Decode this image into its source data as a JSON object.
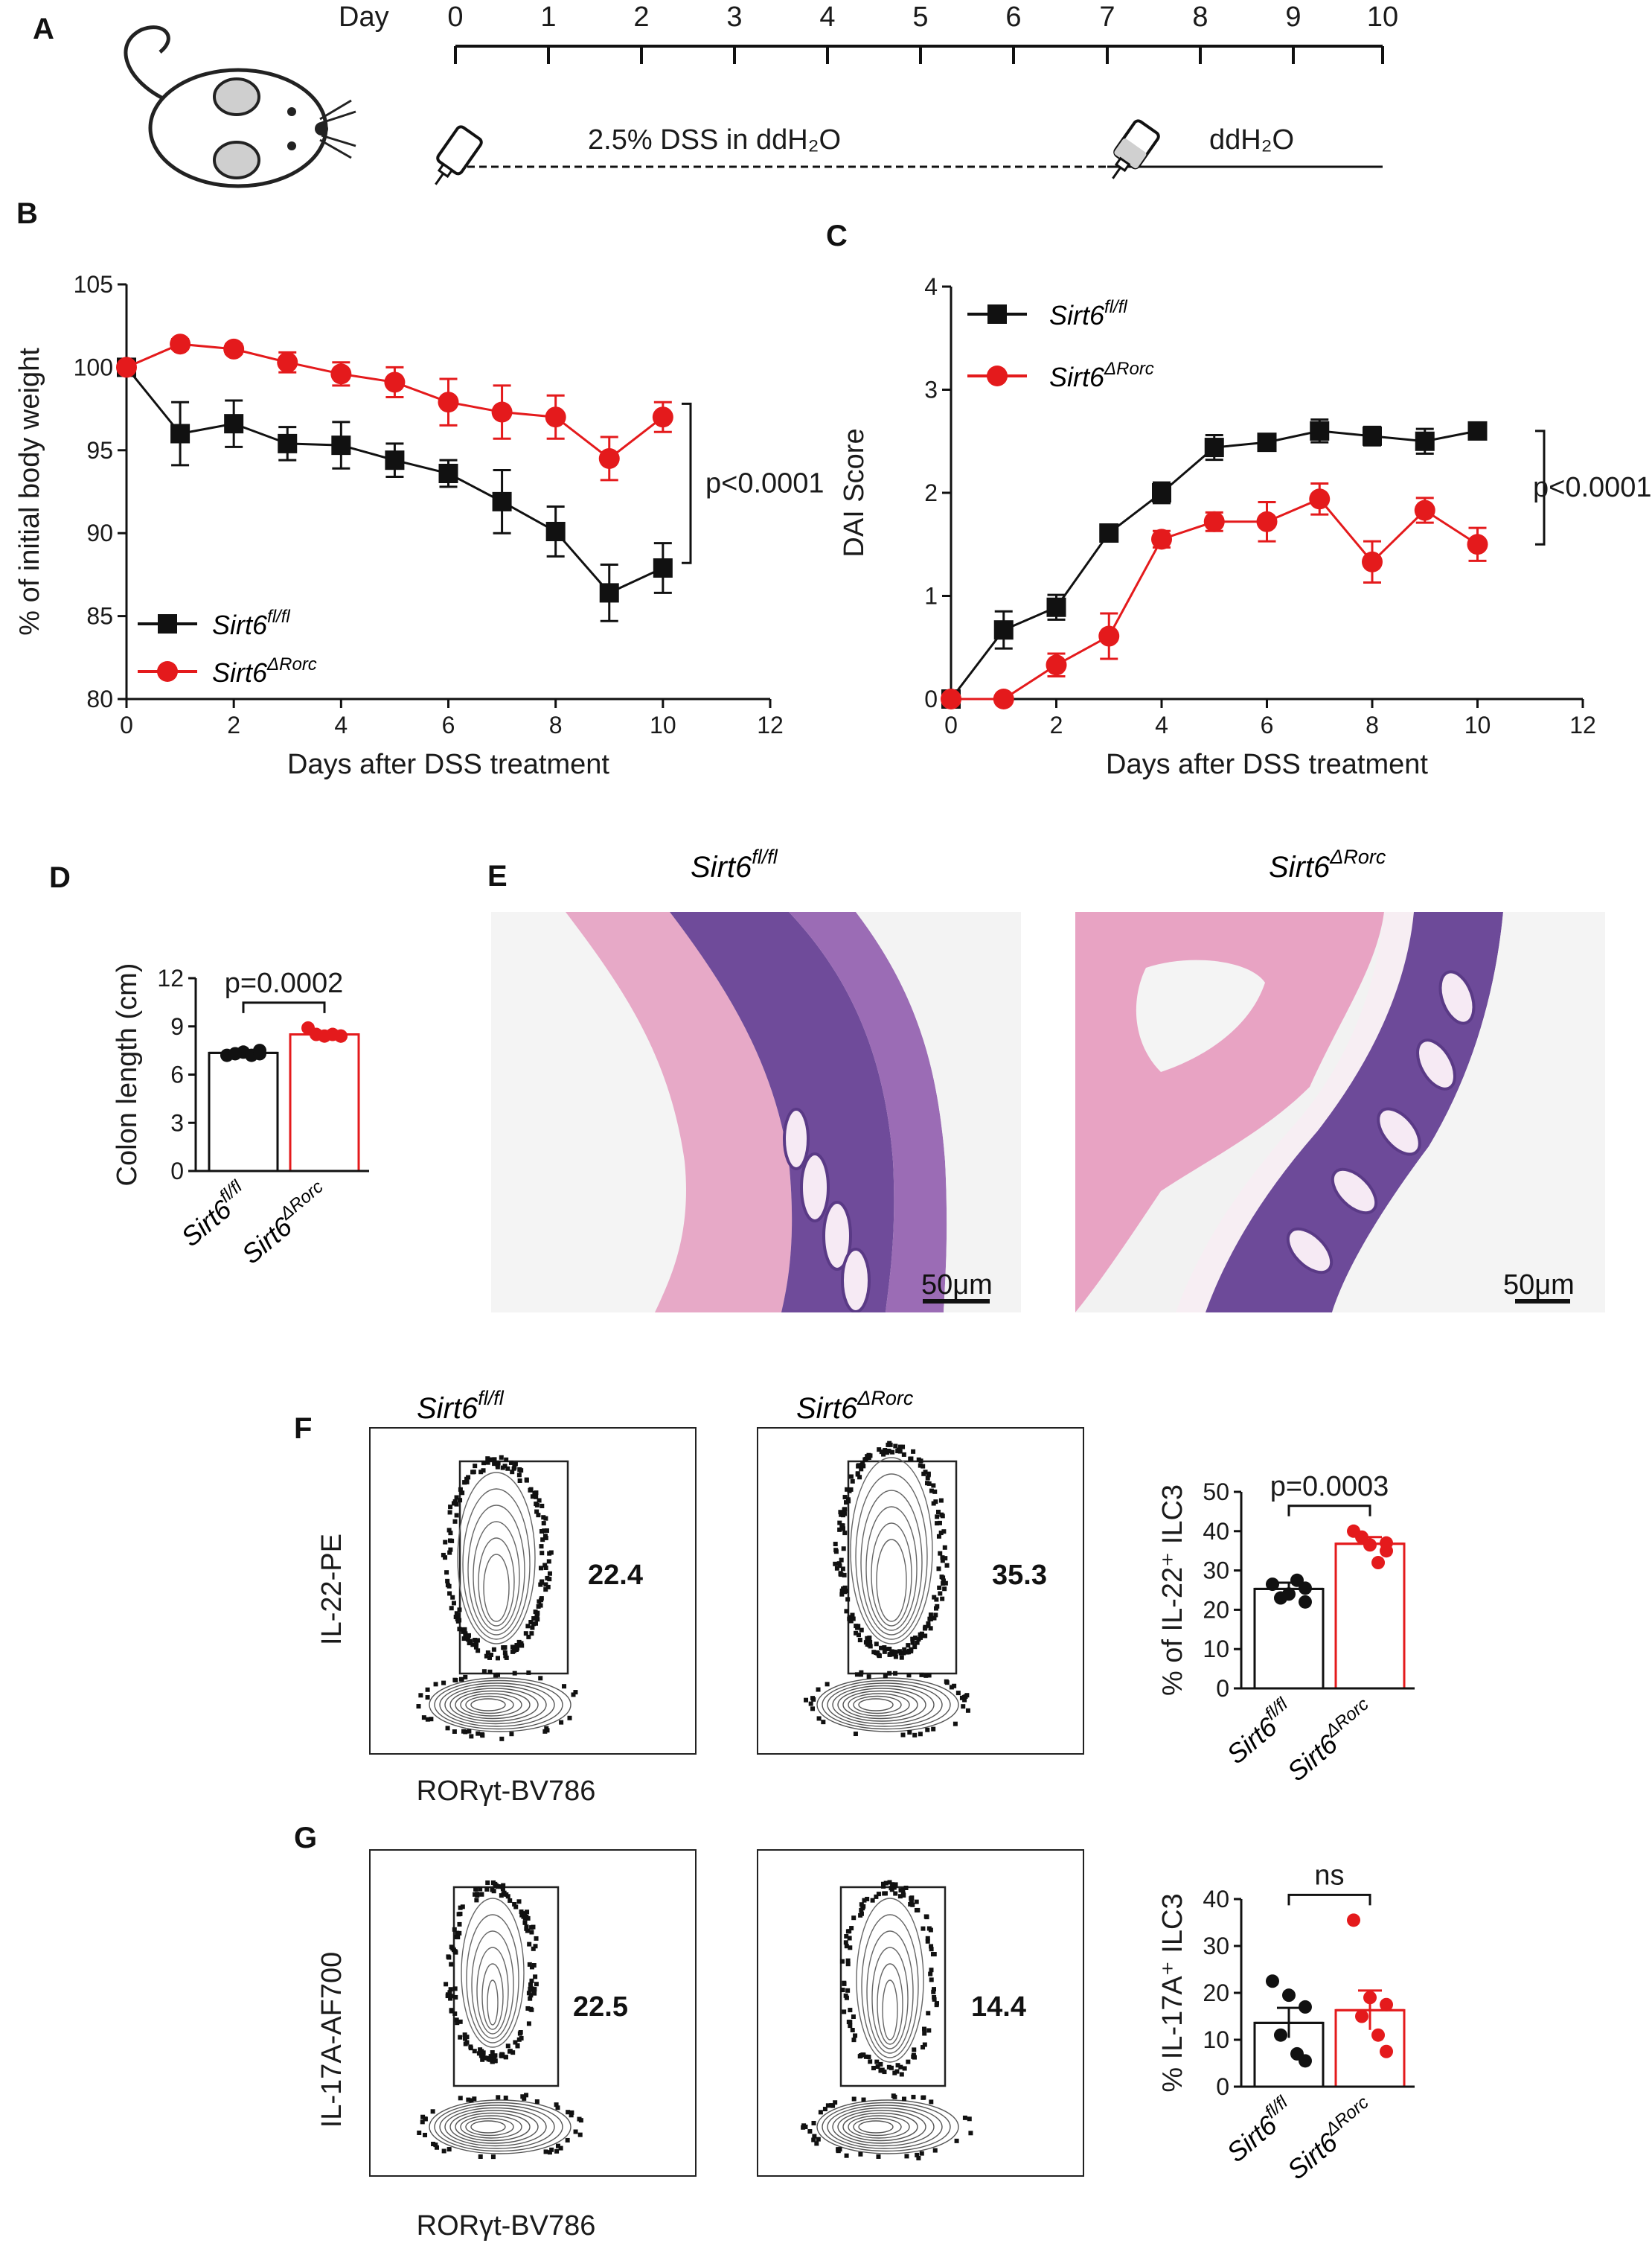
{
  "panels": {
    "A": "A",
    "B": "B",
    "C": "C",
    "D": "D",
    "E": "E",
    "F": "F",
    "G": "G"
  },
  "timeline": {
    "day_label": "Day",
    "days": [
      "0",
      "1",
      "2",
      "3",
      "4",
      "5",
      "6",
      "7",
      "8",
      "9",
      "10"
    ],
    "dss_label": "2.5% DSS in ddH₂O",
    "water_label": "ddH₂O"
  },
  "groups": {
    "fl": "Sirt6",
    "fl_sup": "fl/fl",
    "ko": "Sirt6",
    "ko_sup": "ΔRorc"
  },
  "colors": {
    "fl": "#111111",
    "ko": "#e41a1c"
  },
  "chart_data": [
    {
      "id": "B",
      "type": "line",
      "xlabel": "Days after DSS treatment",
      "ylabel": "% of initial body weight",
      "xlim": [
        0,
        12
      ],
      "ylim": [
        80,
        105
      ],
      "xticks": [
        "0",
        "2",
        "4",
        "6",
        "8",
        "10",
        "12"
      ],
      "yticks": [
        "80",
        "85",
        "90",
        "95",
        "100",
        "105"
      ],
      "x": [
        0,
        1,
        2,
        3,
        4,
        5,
        6,
        7,
        8,
        9,
        10
      ],
      "series": [
        {
          "name": "Sirt6 fl/fl",
          "values": [
            100,
            96,
            96.6,
            95.4,
            95.3,
            94.4,
            93.6,
            91.9,
            90.1,
            86.4,
            87.9
          ],
          "err": [
            0,
            1.9,
            1.4,
            1.0,
            1.4,
            1.0,
            0.8,
            1.9,
            1.5,
            1.7,
            1.5
          ]
        },
        {
          "name": "Sirt6 ΔRorc",
          "values": [
            100,
            101.4,
            101.1,
            100.3,
            99.6,
            99.1,
            97.9,
            97.3,
            97.0,
            94.5,
            97.0
          ],
          "err": [
            0,
            0.3,
            0.3,
            0.6,
            0.7,
            0.9,
            1.4,
            1.6,
            1.3,
            1.3,
            0.9
          ]
        }
      ],
      "annotation": "p<0.0001"
    },
    {
      "id": "C",
      "type": "line",
      "xlabel": "Days after DSS treatment",
      "ylabel": "DAI Score",
      "xlim": [
        0,
        12
      ],
      "ylim": [
        0,
        4
      ],
      "xticks": [
        "0",
        "2",
        "4",
        "6",
        "8",
        "10",
        "12"
      ],
      "yticks": [
        "0",
        "1",
        "2",
        "3",
        "4"
      ],
      "x": [
        0,
        1,
        2,
        3,
        4,
        5,
        6,
        7,
        8,
        9,
        10
      ],
      "series": [
        {
          "name": "Sirt6 fl/fl",
          "values": [
            0,
            0.67,
            0.89,
            1.61,
            2.0,
            2.44,
            2.49,
            2.6,
            2.55,
            2.5,
            2.6
          ],
          "err": [
            0,
            0.18,
            0.12,
            0.08,
            0.1,
            0.12,
            0.05,
            0.11,
            0.09,
            0.12,
            0.08
          ]
        },
        {
          "name": "Sirt6 ΔRorc",
          "values": [
            0,
            0,
            0.33,
            0.61,
            1.55,
            1.72,
            1.72,
            1.94,
            1.33,
            1.83,
            1.5
          ],
          "err": [
            0,
            0,
            0.11,
            0.22,
            0.08,
            0.09,
            0.19,
            0.15,
            0.2,
            0.12,
            0.16
          ]
        }
      ],
      "annotation": "p<0.0001"
    },
    {
      "id": "D",
      "type": "bar",
      "ylabel": "Colon length (cm)",
      "ylim": [
        0,
        12
      ],
      "yticks": [
        "0",
        "3",
        "6",
        "9",
        "12"
      ],
      "values": [
        7.35,
        8.5
      ],
      "err": [
        0.1,
        0.15
      ],
      "points": [
        [
          7.2,
          7.4,
          7.5,
          7.3,
          7.2,
          7.3
        ],
        [
          8.9,
          8.4,
          8.4,
          8.5,
          8.5,
          8.4
        ]
      ],
      "annotation": "p=0.0002"
    },
    {
      "id": "F",
      "type": "bar",
      "ylabel": "% of IL-22⁺ ILC3",
      "ylim": [
        0,
        50
      ],
      "yticks": [
        "0",
        "10",
        "20",
        "30",
        "40",
        "50"
      ],
      "values": [
        25.3,
        36.8
      ],
      "err": [
        1.6,
        1.7
      ],
      "points": [
        [
          26.5,
          24.0,
          25.5,
          23.0,
          27.5,
          22.0
        ],
        [
          40.0,
          36.5,
          37.0,
          38.5,
          32.0,
          35.0
        ]
      ],
      "annotation": "p=0.0003"
    },
    {
      "id": "G",
      "type": "bar",
      "ylabel": "% IL-17A⁺ ILC3",
      "ylim": [
        0,
        40
      ],
      "yticks": [
        "0",
        "10",
        "20",
        "30",
        "40"
      ],
      "values": [
        13.6,
        16.3
      ],
      "err": [
        3.2,
        4.2
      ],
      "points": [
        [
          22.5,
          19.5,
          17.0,
          11.0,
          7.0,
          5.5
        ],
        [
          35.5,
          19.0,
          17.5,
          15.0,
          11.0,
          7.5
        ]
      ],
      "annotation": "ns"
    }
  ],
  "histology": {
    "scale_bar": "50μm"
  },
  "flow": {
    "F": {
      "ylabel": "IL-22-PE",
      "xlabel": "RORγt-BV786",
      "gate_fl": "22.4",
      "gate_ko": "35.3"
    },
    "G": {
      "ylabel": "IL-17A-AF700",
      "xlabel": "RORγt-BV786",
      "gate_fl": "22.5",
      "gate_ko": "14.4"
    }
  }
}
